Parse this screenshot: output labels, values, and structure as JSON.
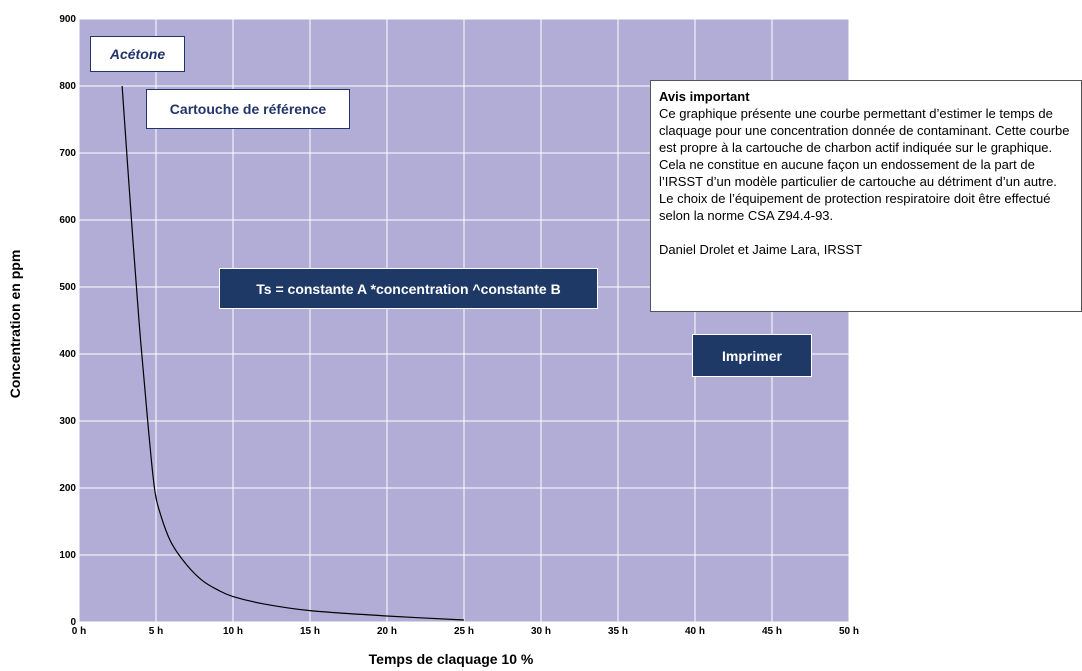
{
  "chart_data": {
    "type": "line",
    "xlabel": "Temps de claquage 10 %",
    "ylabel": "Concentration en ppm",
    "xlim": [
      0,
      50
    ],
    "ylim": [
      0,
      900
    ],
    "x_ticks": [
      0,
      5,
      10,
      15,
      20,
      25,
      30,
      35,
      40,
      45,
      50
    ],
    "x_tick_labels": [
      "0 h",
      "5 h",
      "10 h",
      "15 h",
      "20 h",
      "25 h",
      "30 h",
      "35 h",
      "40 h",
      "45 h",
      "50 h"
    ],
    "y_ticks": [
      0,
      100,
      200,
      300,
      400,
      500,
      600,
      700,
      800,
      900
    ],
    "y_tick_labels": [
      "0",
      "100",
      "200",
      "300",
      "400",
      "500",
      "600",
      "700",
      "800",
      "900"
    ],
    "grid": true,
    "series": [
      {
        "x": [
          2.8,
          3.5,
          4.0,
          4.5,
          4.9,
          5.3,
          6.0,
          7.0,
          8.0,
          9.0,
          10.0,
          12.0,
          15.0,
          20.0,
          25.0
        ],
        "y": [
          800,
          570,
          420,
          290,
          200,
          160,
          118,
          85,
          62,
          48,
          38,
          27,
          17,
          9,
          3
        ]
      }
    ],
    "colors": {
      "plot_background": "#b1add7",
      "grid": "#ffffff",
      "line": "#000000"
    }
  },
  "substance_label": "Acétone",
  "cartridge_label": "Cartouche de référence",
  "formula_label": "Ts  = constante A *concentration ^constante B",
  "print_button_label": "Imprimer",
  "notice": {
    "title": "Avis important",
    "body": "Ce graphique présente une courbe permettant d’estimer le temps de claquage pour une concentration donnée de contaminant. Cette courbe est propre à la cartouche de charbon actif indiquée sur le graphique. Cela ne constitue en aucune façon un endossement de la part de l’IRSST d’un modèle particulier de cartouche au détriment d’un autre. Le choix de l’équipement de protection respiratoire doit être effectué selon la norme CSA Z94.4-93.",
    "signature": "Daniel Drolet et Jaime Lara, IRSST"
  }
}
